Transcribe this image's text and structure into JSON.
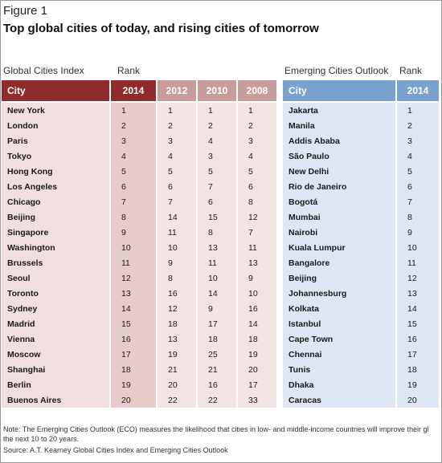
{
  "figure_label": "Figure 1",
  "title": "Top global cities of today, and rising cities of tomorrow",
  "gci": {
    "section_label": "Global Cities Index",
    "rank_label": "Rank",
    "headers": [
      "City",
      "2014",
      "2012",
      "2010",
      "2008"
    ],
    "rows": [
      [
        "New York",
        "1",
        "1",
        "1",
        "1"
      ],
      [
        "London",
        "2",
        "2",
        "2",
        "2"
      ],
      [
        "Paris",
        "3",
        "3",
        "4",
        "3"
      ],
      [
        "Tokyo",
        "4",
        "4",
        "3",
        "4"
      ],
      [
        "Hong Kong",
        "5",
        "5",
        "5",
        "5"
      ],
      [
        "Los Angeles",
        "6",
        "6",
        "7",
        "6"
      ],
      [
        "Chicago",
        "7",
        "7",
        "6",
        "8"
      ],
      [
        "Beijing",
        "8",
        "14",
        "15",
        "12"
      ],
      [
        "Singapore",
        "9",
        "11",
        "8",
        "7"
      ],
      [
        "Washington",
        "10",
        "10",
        "13",
        "11"
      ],
      [
        "Brussels",
        "11",
        "9",
        "11",
        "13"
      ],
      [
        "Seoul",
        "12",
        "8",
        "10",
        "9"
      ],
      [
        "Toronto",
        "13",
        "16",
        "14",
        "10"
      ],
      [
        "Sydney",
        "14",
        "12",
        "9",
        "16"
      ],
      [
        "Madrid",
        "15",
        "18",
        "17",
        "14"
      ],
      [
        "Vienna",
        "16",
        "13",
        "18",
        "18"
      ],
      [
        "Moscow",
        "17",
        "19",
        "25",
        "19"
      ],
      [
        "Shanghai",
        "18",
        "21",
        "21",
        "20"
      ],
      [
        "Berlin",
        "19",
        "20",
        "16",
        "17"
      ],
      [
        "Buenos Aires",
        "20",
        "22",
        "22",
        "33"
      ]
    ]
  },
  "eco": {
    "section_label": "Emerging Cities Outlook",
    "rank_label": "Rank",
    "headers": [
      "City",
      "2014"
    ],
    "rows": [
      [
        "Jakarta",
        "1"
      ],
      [
        "Manila",
        "2"
      ],
      [
        "Addis Ababa",
        "3"
      ],
      [
        "São Paulo",
        "4"
      ],
      [
        "New Delhi",
        "5"
      ],
      [
        "Rio de Janeiro",
        "6"
      ],
      [
        "Bogotá",
        "7"
      ],
      [
        "Mumbai",
        "8"
      ],
      [
        "Nairobi",
        "9"
      ],
      [
        "Kuala Lumpur",
        "10"
      ],
      [
        "Bangalore",
        "11"
      ],
      [
        "Beijing",
        "12"
      ],
      [
        "Johannesburg",
        "13"
      ],
      [
        "Kolkata",
        "14"
      ],
      [
        "Istanbul",
        "15"
      ],
      [
        "Cape Town",
        "16"
      ],
      [
        "Chennai",
        "17"
      ],
      [
        "Tunis",
        "18"
      ],
      [
        "Dhaka",
        "19"
      ],
      [
        "Caracas",
        "20"
      ]
    ]
  },
  "note_line1": "Note: The Emerging Cities Outlook (ECO) measures the likelihood that cities in low- and middle-income countries will improve their gl",
  "note_line2": "the next 10 to 20 years.",
  "source": "Source: A.T. Kearney Global Cities Index and Emerging Cities Outlook",
  "colors": {
    "gci_header": "#8e2b2b",
    "gci_header_past": "#c99c9c",
    "eco_header": "#7aa2cf"
  }
}
